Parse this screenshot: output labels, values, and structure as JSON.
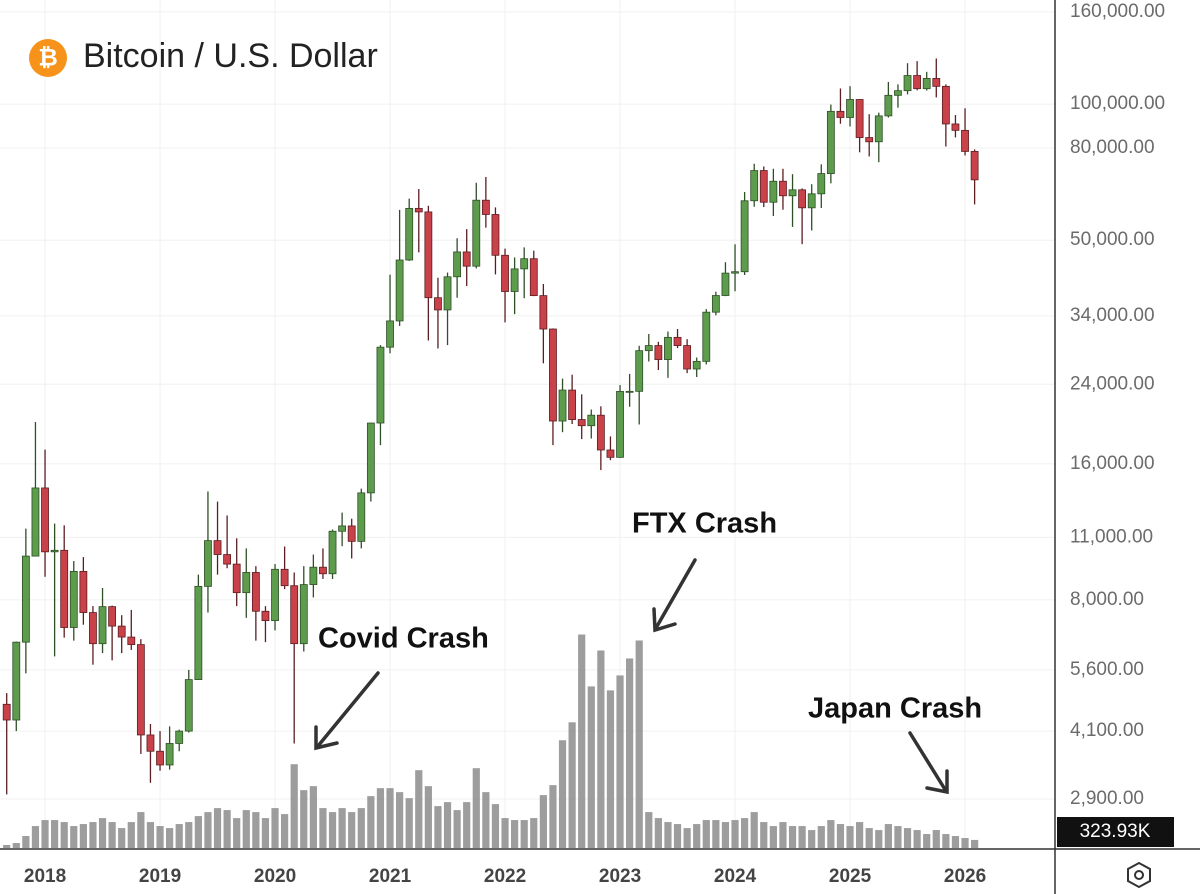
{
  "chart_data": {
    "type": "candlestick",
    "title": "Bitcoin / U.S. Dollar",
    "log_scale": true,
    "grid": true,
    "up_color": "#5d9c4c",
    "down_color": "#c9424a",
    "ylim": [
      2260,
      170000
    ],
    "yticks": [
      {
        "value": 2900,
        "label": "2,900.00"
      },
      {
        "value": 4100,
        "label": "4,100.00"
      },
      {
        "value": 5600,
        "label": "5,600.00"
      },
      {
        "value": 8000,
        "label": "8,000.00"
      },
      {
        "value": 11000,
        "label": "11,000.00"
      },
      {
        "value": 16000,
        "label": "16,000.00"
      },
      {
        "value": 24000,
        "label": "24,000.00"
      },
      {
        "value": 34000,
        "label": "34,000.00"
      },
      {
        "value": 50000,
        "label": "50,000.00"
      },
      {
        "value": 80000,
        "label": "80,000.00"
      },
      {
        "value": 100000,
        "label": "100,000.00"
      },
      {
        "value": 160000,
        "label": "160,000.00"
      }
    ],
    "categories": [
      null,
      null,
      null,
      null,
      "2018",
      null,
      null,
      null,
      null,
      null,
      null,
      null,
      null,
      null,
      null,
      null,
      "2019",
      null,
      null,
      null,
      null,
      null,
      null,
      null,
      null,
      null,
      null,
      null,
      "2020",
      null,
      null,
      null,
      null,
      null,
      null,
      null,
      null,
      null,
      null,
      null,
      "2021",
      null,
      null,
      null,
      null,
      null,
      null,
      null,
      null,
      null,
      null,
      null,
      "2022",
      null,
      null,
      null,
      null,
      null,
      null,
      null,
      null,
      null,
      null,
      null,
      "2023",
      null,
      null,
      null,
      null,
      null,
      null,
      null,
      null,
      null,
      null,
      null,
      "2024",
      null,
      null,
      null,
      null,
      null,
      null,
      null,
      null,
      null,
      null,
      null,
      "2025",
      null,
      null,
      null,
      null,
      null,
      null,
      null,
      null,
      null,
      null,
      null,
      "2026",
      null
    ],
    "open": [
      4700,
      4338,
      6450,
      10000,
      14150,
      10220,
      10300,
      6950,
      9250,
      7500,
      6400,
      7730,
      7000,
      6620,
      6370,
      4020,
      3700,
      3450,
      3850,
      4100,
      5330,
      8570,
      10820,
      10080,
      9600,
      8300,
      9200,
      7550,
      7200,
      9350,
      8600,
      6400,
      8650,
      9450,
      9140,
      11350,
      11660,
      10780,
      13800,
      19700,
      28990,
      33140,
      45200,
      58800,
      57750,
      37300,
      35050,
      41500,
      47100,
      43800,
      61300,
      57000,
      46300,
      38500,
      43200,
      45500,
      37700,
      31800,
      19900,
      23300,
      20050,
      19430,
      20500,
      17170,
      16540,
      23140,
      23150,
      28480,
      29230,
      27220,
      30480,
      29230,
      25940,
      26970,
      34650,
      37720,
      42280,
      42580,
      61130,
      71300,
      60670,
      67520,
      62700,
      64630,
      58970,
      63330,
      70200,
      96400,
      93430,
      102400,
      84350,
      82550,
      94200,
      104600,
      107100,
      115700,
      108200,
      114000,
      109500,
      90400,
      87500,
      78600
    ],
    "high": [
      4975,
      6470,
      11500,
      19800,
      17200,
      11800,
      11700,
      9750,
      9950,
      7750,
      8500,
      7770,
      7400,
      7600,
      6550,
      4250,
      4100,
      4200,
      4130,
      5600,
      9100,
      13900,
      13200,
      12300,
      10950,
      10400,
      9500,
      7750,
      9600,
      10500,
      9200,
      9500,
      10080,
      10400,
      11450,
      12480,
      12100,
      14100,
      19500,
      29300,
      41950,
      58350,
      61800,
      64900,
      59600,
      41300,
      42400,
      50500,
      52900,
      67000,
      69000,
      59100,
      47900,
      45800,
      48200,
      47400,
      40000,
      31900,
      24700,
      25200,
      22800,
      21100,
      21450,
      18400,
      23900,
      25300,
      29200,
      31000,
      29800,
      31400,
      31800,
      30200,
      27500,
      35200,
      38450,
      44700,
      48970,
      63900,
      73800,
      72800,
      71950,
      71950,
      70000,
      65100,
      66500,
      73600,
      99800,
      108300,
      109600,
      102500,
      95000,
      95750,
      112000,
      110600,
      123200,
      124500,
      117900,
      126200,
      110600,
      94600,
      97900,
      79400
    ],
    "low": [
      2970,
      4100,
      5500,
      10800,
      9000,
      6000,
      6600,
      6500,
      7050,
      5750,
      6100,
      5880,
      6100,
      6200,
      3650,
      3150,
      3350,
      3370,
      3700,
      4070,
      5330,
      7500,
      9100,
      9400,
      7750,
      7300,
      6500,
      6450,
      6850,
      8450,
      3850,
      6150,
      8100,
      8900,
      8900,
      10520,
      9880,
      10400,
      13200,
      17600,
      28100,
      32300,
      45000,
      47000,
      30000,
      28800,
      29300,
      37300,
      39600,
      43300,
      53300,
      42000,
      32900,
      34300,
      37200,
      37600,
      26700,
      17600,
      18800,
      19600,
      18150,
      18200,
      15500,
      16300,
      16500,
      21400,
      19550,
      26950,
      25800,
      24800,
      28850,
      25400,
      24900,
      26550,
      34100,
      37600,
      38550,
      41880,
      59300,
      59200,
      56550,
      58400,
      53500,
      49000,
      52550,
      58900,
      66800,
      90500,
      89250,
      78250,
      76600,
      74400,
      93400,
      98200,
      105100,
      107300,
      107200,
      103500,
      80600,
      84400,
      77000,
      60000
    ],
    "close": [
      4338,
      6450,
      10000,
      14150,
      10220,
      10300,
      6950,
      9250,
      7500,
      6400,
      7730,
      7000,
      6620,
      6370,
      4020,
      3700,
      3450,
      3850,
      4100,
      5330,
      8570,
      10820,
      10080,
      9600,
      8300,
      9200,
      7550,
      7200,
      9350,
      8600,
      6400,
      8650,
      9450,
      9140,
      11350,
      11660,
      10780,
      13800,
      19700,
      28990,
      33140,
      45200,
      58800,
      57750,
      37300,
      35050,
      41500,
      47100,
      43800,
      61300,
      57000,
      46300,
      38500,
      43200,
      45500,
      37700,
      31800,
      19900,
      23300,
      20050,
      19430,
      20500,
      17170,
      16540,
      23140,
      23150,
      28480,
      29230,
      27220,
      30480,
      29230,
      25940,
      26970,
      34650,
      37720,
      42280,
      42580,
      61130,
      71300,
      60670,
      67520,
      62700,
      64630,
      58970,
      63330,
      70200,
      96400,
      93430,
      102400,
      84350,
      82550,
      94200,
      104600,
      107100,
      115700,
      108200,
      114000,
      109500,
      90400,
      87500,
      78600,
      68000
    ],
    "volume": {
      "color": "#8c8c8c",
      "ylim": [
        0,
        34000
      ],
      "values": [
        120,
        200,
        480,
        880,
        1120,
        1120,
        1040,
        880,
        960,
        1040,
        1200,
        1040,
        800,
        1040,
        1440,
        1040,
        880,
        800,
        960,
        1040,
        1280,
        1440,
        1600,
        1520,
        1200,
        1520,
        1440,
        1200,
        1600,
        1360,
        3360,
        2320,
        2480,
        1600,
        1440,
        1600,
        1440,
        1600,
        2080,
        2400,
        2400,
        2240,
        2000,
        3120,
        2480,
        1680,
        1840,
        1520,
        1840,
        3200,
        2240,
        1760,
        1200,
        1120,
        1120,
        1200,
        2120,
        2520,
        4320,
        5040,
        8560,
        6480,
        7920,
        6320,
        6920,
        7600,
        8320,
        1440,
        1200,
        1040,
        960,
        800,
        960,
        1120,
        1120,
        1040,
        1120,
        1200,
        1440,
        1040,
        880,
        1040,
        880,
        880,
        720,
        880,
        1120,
        960,
        880,
        1040,
        800,
        720,
        960,
        880,
        800,
        720,
        560,
        720,
        560,
        480,
        400,
        323.93
      ],
      "last_value_label": "323.93K"
    },
    "annotations": [
      {
        "text": "Covid Crash"
      },
      {
        "text": "FTX Crash"
      },
      {
        "text": "Japan Crash"
      }
    ]
  }
}
